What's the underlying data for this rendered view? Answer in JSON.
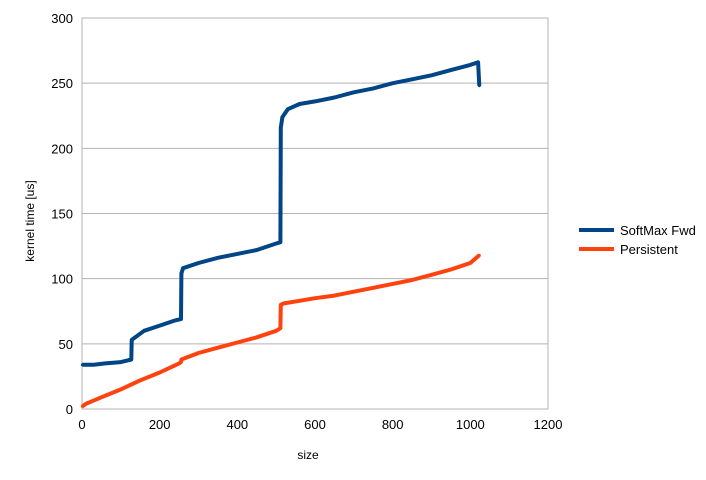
{
  "chart_data": {
    "type": "line",
    "xlabel": "size",
    "ylabel": "kernel time [us]",
    "xlim": [
      0,
      1200
    ],
    "ylim": [
      0,
      300
    ],
    "xticks": [
      0,
      200,
      400,
      600,
      800,
      1000,
      1200
    ],
    "yticks": [
      0,
      50,
      100,
      150,
      200,
      250,
      300
    ],
    "grid": "horizontal",
    "legend_position": "right",
    "series": [
      {
        "name": "SoftMax Fwd",
        "color": "#004586",
        "x": [
          1,
          30,
          60,
          100,
          127,
          128,
          160,
          200,
          240,
          255,
          256,
          260,
          300,
          350,
          400,
          450,
          500,
          511,
          512,
          516,
          530,
          560,
          600,
          650,
          700,
          750,
          800,
          850,
          900,
          950,
          1000,
          1020,
          1023
        ],
        "y": [
          34,
          34,
          35,
          36,
          38,
          53,
          60,
          64,
          68,
          69,
          104,
          108,
          112,
          116,
          119,
          122,
          127,
          128,
          216,
          224,
          230,
          234,
          236,
          239,
          243,
          246,
          250,
          253,
          256,
          260,
          264,
          266,
          248
        ]
      },
      {
        "name": "Persistent",
        "color": "#ff420e",
        "x": [
          1,
          10,
          50,
          100,
          150,
          200,
          250,
          255,
          256,
          300,
          350,
          400,
          450,
          500,
          511,
          512,
          520,
          560,
          600,
          650,
          700,
          750,
          800,
          850,
          900,
          950,
          1000,
          1023
        ],
        "y": [
          2,
          4,
          9,
          15,
          22,
          28,
          35,
          36,
          38,
          43,
          47,
          51,
          55,
          60,
          62,
          80,
          81,
          83,
          85,
          87,
          90,
          93,
          96,
          99,
          103,
          107,
          112,
          118
        ]
      }
    ]
  }
}
